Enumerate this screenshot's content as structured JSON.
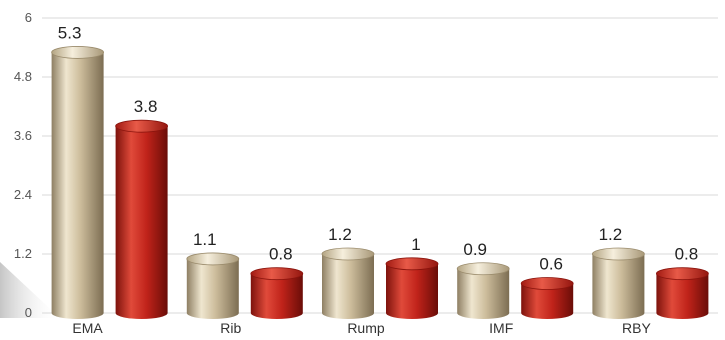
{
  "chart_data": {
    "type": "bar",
    "categories": [
      "EMA",
      "Rib",
      "Rump",
      "IMF",
      "RBY"
    ],
    "series": [
      {
        "values": [
          5.3,
          1.1,
          1.2,
          0.9,
          1.2
        ],
        "color": "#c9b998",
        "labels": [
          "5.3",
          "1.1",
          "1.2",
          "0.9",
          "1.2"
        ]
      },
      {
        "values": [
          3.8,
          0.8,
          1,
          0.6,
          0.8
        ],
        "color": "#c0231a",
        "labels": [
          "3.8",
          "0.8",
          "1",
          "0.6",
          "0.8"
        ]
      }
    ],
    "y_ticks": [
      "0",
      "1.2",
      "2.4",
      "3.6",
      "4.8",
      "6"
    ],
    "ylim": [
      0,
      6
    ],
    "grid": true,
    "legend": "none",
    "title": "",
    "xlabel": "",
    "ylabel": ""
  }
}
